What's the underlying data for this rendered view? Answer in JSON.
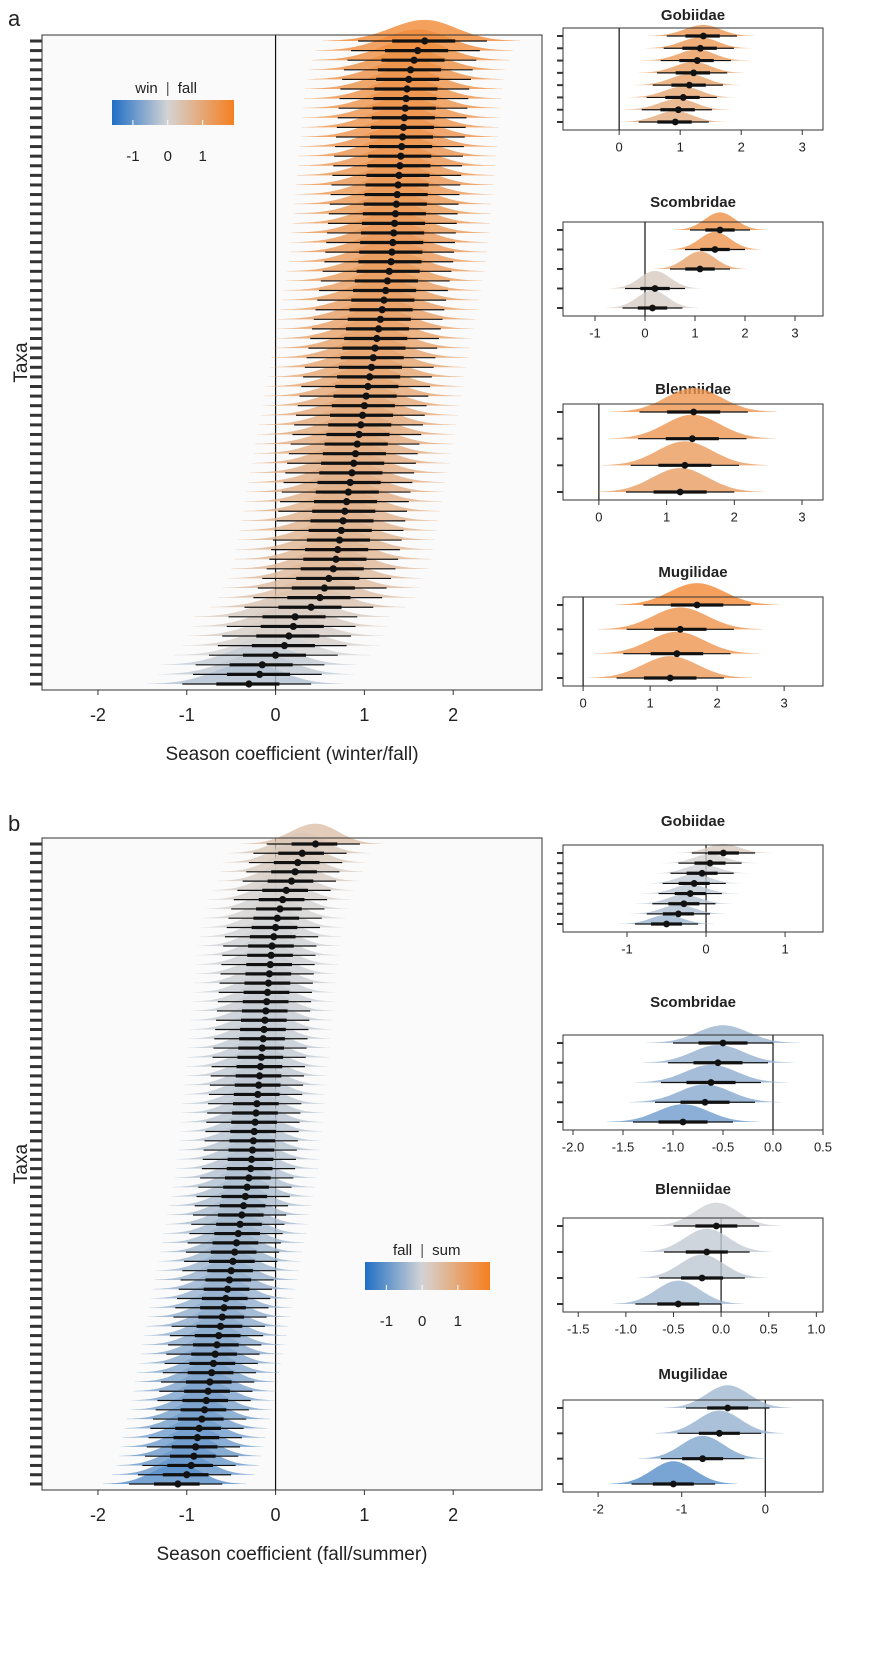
{
  "chart_data": [
    {
      "type": "eye",
      "panel_label": "a",
      "x_label": "Season coefficient (winter/fall)",
      "y_label": "Taxa",
      "xlim": [
        -2.63,
        3.0
      ],
      "xticks": [
        -2,
        -1,
        0,
        1,
        2
      ],
      "color_scale": {
        "labels": [
          "win",
          "fall"
        ],
        "ticks": [
          -1,
          0,
          1
        ],
        "lim": [
          -1.6,
          1.9
        ],
        "colors": [
          "#1f6fc5",
          "#d4d4d4",
          "#f57f20"
        ]
      },
      "values": [
        1.68,
        1.6,
        1.56,
        1.52,
        1.5,
        1.48,
        1.47,
        1.46,
        1.45,
        1.44,
        1.43,
        1.42,
        1.41,
        1.4,
        1.39,
        1.38,
        1.37,
        1.36,
        1.35,
        1.34,
        1.33,
        1.32,
        1.31,
        1.3,
        1.28,
        1.26,
        1.24,
        1.22,
        1.2,
        1.18,
        1.16,
        1.14,
        1.12,
        1.1,
        1.08,
        1.06,
        1.04,
        1.02,
        1.0,
        0.98,
        0.96,
        0.94,
        0.92,
        0.9,
        0.88,
        0.86,
        0.84,
        0.82,
        0.8,
        0.78,
        0.76,
        0.74,
        0.72,
        0.7,
        0.68,
        0.65,
        0.6,
        0.55,
        0.5,
        0.4,
        0.22,
        0.2,
        0.15,
        0.1,
        0.0,
        -0.15,
        -0.18,
        -0.3
      ],
      "lower": [
        0.93,
        0.85,
        0.81,
        0.77,
        0.75,
        0.73,
        0.72,
        0.71,
        0.7,
        0.69,
        0.68,
        0.67,
        0.66,
        0.65,
        0.64,
        0.63,
        0.62,
        0.61,
        0.6,
        0.59,
        0.58,
        0.57,
        0.56,
        0.55,
        0.53,
        0.51,
        0.49,
        0.47,
        0.45,
        0.43,
        0.41,
        0.39,
        0.37,
        0.35,
        0.33,
        0.31,
        0.29,
        0.27,
        0.25,
        0.23,
        0.21,
        0.19,
        0.17,
        0.15,
        0.13,
        0.11,
        0.09,
        0.07,
        0.05,
        0.03,
        0.01,
        -0.01,
        -0.03,
        -0.05,
        -0.07,
        -0.1,
        -0.15,
        -0.2,
        -0.25,
        -0.35,
        -0.53,
        -0.55,
        -0.6,
        -0.65,
        -0.75,
        -0.9,
        -0.93,
        -1.05
      ],
      "upper": [
        2.38,
        2.3,
        2.26,
        2.22,
        2.2,
        2.18,
        2.17,
        2.16,
        2.15,
        2.14,
        2.13,
        2.12,
        2.11,
        2.1,
        2.09,
        2.08,
        2.07,
        2.06,
        2.05,
        2.04,
        2.03,
        2.02,
        2.01,
        2.0,
        1.98,
        1.96,
        1.94,
        1.92,
        1.9,
        1.88,
        1.86,
        1.84,
        1.82,
        1.8,
        1.78,
        1.76,
        1.74,
        1.72,
        1.7,
        1.68,
        1.66,
        1.64,
        1.62,
        1.6,
        1.58,
        1.56,
        1.54,
        1.52,
        1.5,
        1.48,
        1.46,
        1.44,
        1.42,
        1.4,
        1.38,
        1.35,
        1.3,
        1.25,
        1.2,
        1.1,
        0.92,
        0.9,
        0.85,
        0.8,
        0.7,
        0.55,
        0.52,
        0.4
      ]
    },
    {
      "type": "eye",
      "title": "Gobiidae",
      "xlim": [
        -0.92,
        3.34
      ],
      "xticks": [
        0,
        1,
        2,
        3
      ],
      "values": [
        1.38,
        1.33,
        1.28,
        1.22,
        1.15,
        1.05,
        0.97,
        0.92
      ],
      "lower": [
        0.78,
        0.73,
        0.68,
        0.62,
        0.55,
        0.45,
        0.37,
        0.32
      ],
      "upper": [
        1.93,
        1.88,
        1.83,
        1.77,
        1.7,
        1.6,
        1.52,
        1.47
      ]
    },
    {
      "type": "eye",
      "title": "Scombridae",
      "xlim": [
        -1.64,
        3.56
      ],
      "xticks": [
        -1,
        0,
        1,
        2,
        3
      ],
      "values": [
        1.5,
        1.4,
        1.1,
        0.2,
        0.15
      ],
      "lower": [
        0.9,
        0.8,
        0.5,
        -0.4,
        -0.45
      ],
      "upper": [
        2.1,
        2.0,
        1.7,
        0.8,
        0.75
      ]
    },
    {
      "type": "eye",
      "title": "Blenniidae",
      "xlim": [
        -0.53,
        3.31
      ],
      "xticks": [
        0,
        1,
        2,
        3
      ],
      "values": [
        1.4,
        1.38,
        1.27,
        1.2
      ],
      "lower": [
        0.6,
        0.58,
        0.47,
        0.4
      ],
      "upper": [
        2.2,
        2.18,
        2.07,
        2.0
      ]
    },
    {
      "type": "eye",
      "title": "Mugilidae",
      "xlim": [
        -0.3,
        3.58
      ],
      "xticks": [
        0,
        1,
        2,
        3
      ],
      "values": [
        1.7,
        1.45,
        1.4,
        1.3
      ],
      "lower": [
        0.9,
        0.65,
        0.6,
        0.5
      ],
      "upper": [
        2.5,
        2.25,
        2.2,
        2.1
      ]
    },
    {
      "type": "eye",
      "panel_label": "b",
      "x_label": "Season coefficient (fall/summer)",
      "y_label": "Taxa",
      "xlim": [
        -2.63,
        3.0
      ],
      "xticks": [
        -2,
        -1,
        0,
        1,
        2
      ],
      "color_scale": {
        "labels": [
          "fall",
          "sum"
        ],
        "ticks": [
          -1,
          0,
          1
        ],
        "lim": [
          -1.6,
          1.9
        ],
        "colors": [
          "#1f6fc5",
          "#d4d4d4",
          "#f57f20"
        ]
      },
      "values": [
        0.45,
        0.3,
        0.25,
        0.22,
        0.18,
        0.12,
        0.08,
        0.05,
        0.02,
        0.0,
        -0.02,
        -0.04,
        -0.05,
        -0.06,
        -0.07,
        -0.08,
        -0.09,
        -0.1,
        -0.11,
        -0.12,
        -0.13,
        -0.14,
        -0.15,
        -0.16,
        -0.17,
        -0.18,
        -0.19,
        -0.2,
        -0.21,
        -0.22,
        -0.23,
        -0.24,
        -0.25,
        -0.26,
        -0.27,
        -0.28,
        -0.3,
        -0.32,
        -0.34,
        -0.36,
        -0.38,
        -0.4,
        -0.42,
        -0.44,
        -0.46,
        -0.48,
        -0.5,
        -0.52,
        -0.54,
        -0.56,
        -0.58,
        -0.6,
        -0.62,
        -0.64,
        -0.66,
        -0.68,
        -0.7,
        -0.72,
        -0.74,
        -0.76,
        -0.78,
        -0.8,
        -0.83,
        -0.86,
        -0.88,
        -0.9,
        -0.92,
        -0.95,
        -1.0,
        -1.1
      ],
      "lower": [
        -0.1,
        -0.25,
        -0.3,
        -0.33,
        -0.37,
        -0.43,
        -0.47,
        -0.5,
        -0.53,
        -0.55,
        -0.57,
        -0.59,
        -0.6,
        -0.61,
        -0.62,
        -0.63,
        -0.64,
        -0.65,
        -0.66,
        -0.67,
        -0.68,
        -0.69,
        -0.7,
        -0.71,
        -0.72,
        -0.73,
        -0.74,
        -0.75,
        -0.76,
        -0.77,
        -0.78,
        -0.79,
        -0.8,
        -0.81,
        -0.82,
        -0.83,
        -0.85,
        -0.87,
        -0.89,
        -0.91,
        -0.93,
        -0.95,
        -0.97,
        -0.99,
        -1.01,
        -1.03,
        -1.05,
        -1.07,
        -1.09,
        -1.11,
        -1.13,
        -1.15,
        -1.17,
        -1.19,
        -1.21,
        -1.23,
        -1.25,
        -1.27,
        -1.29,
        -1.31,
        -1.33,
        -1.35,
        -1.38,
        -1.41,
        -1.43,
        -1.45,
        -1.47,
        -1.5,
        -1.55,
        -1.65
      ],
      "upper": [
        0.95,
        0.8,
        0.75,
        0.72,
        0.68,
        0.62,
        0.58,
        0.55,
        0.52,
        0.5,
        0.48,
        0.46,
        0.45,
        0.44,
        0.43,
        0.42,
        0.41,
        0.4,
        0.39,
        0.38,
        0.37,
        0.36,
        0.35,
        0.34,
        0.33,
        0.32,
        0.31,
        0.3,
        0.29,
        0.28,
        0.27,
        0.26,
        0.25,
        0.24,
        0.23,
        0.22,
        0.2,
        0.18,
        0.16,
        0.14,
        0.12,
        0.1,
        0.08,
        0.06,
        0.04,
        0.02,
        0.0,
        -0.02,
        -0.04,
        -0.06,
        -0.08,
        -0.1,
        -0.12,
        -0.14,
        -0.16,
        -0.18,
        -0.2,
        -0.22,
        -0.24,
        -0.26,
        -0.28,
        -0.3,
        -0.33,
        -0.36,
        -0.38,
        -0.4,
        -0.42,
        -0.45,
        -0.5,
        -0.6
      ]
    },
    {
      "type": "eye",
      "title": "Gobiidae",
      "xlim": [
        -1.81,
        1.48
      ],
      "xticks": [
        -1,
        0,
        1
      ],
      "values": [
        0.22,
        0.05,
        -0.05,
        -0.15,
        -0.2,
        -0.28,
        -0.35,
        -0.5
      ],
      "lower": [
        -0.18,
        -0.35,
        -0.45,
        -0.55,
        -0.6,
        -0.68,
        -0.75,
        -0.9
      ],
      "upper": [
        0.62,
        0.45,
        0.35,
        0.25,
        0.2,
        0.12,
        0.05,
        -0.1
      ]
    },
    {
      "type": "eye",
      "title": "Scombridae",
      "xlim": [
        -2.1,
        0.5
      ],
      "xticks": [
        {
          "value": -2,
          "label": "-2.0"
        },
        {
          "value": -1.5,
          "label": "-1.5"
        },
        {
          "value": -1,
          "label": "-1.0"
        },
        {
          "value": -0.5,
          "label": "-0.5"
        },
        {
          "value": 0,
          "label": "0.0"
        },
        {
          "value": 0.5,
          "label": "0.5"
        }
      ],
      "values": [
        -0.5,
        -0.55,
        -0.62,
        -0.68,
        -0.9
      ],
      "lower": [
        -1.0,
        -1.05,
        -1.12,
        -1.18,
        -1.4
      ],
      "upper": [
        0.0,
        -0.05,
        -0.12,
        -0.18,
        -0.4
      ]
    },
    {
      "type": "eye",
      "title": "Blenniidae",
      "xlim": [
        -1.66,
        1.07
      ],
      "xticks": [
        {
          "value": -1.5,
          "label": "-1.5"
        },
        {
          "value": -1,
          "label": "-1.0"
        },
        {
          "value": -0.5,
          "label": "-0.5"
        },
        {
          "value": 0,
          "label": "0.0"
        },
        {
          "value": 0.5,
          "label": "0.5"
        },
        {
          "value": 1,
          "label": "1.0"
        }
      ],
      "values": [
        -0.05,
        -0.15,
        -0.2,
        -0.45
      ],
      "lower": [
        -0.5,
        -0.6,
        -0.65,
        -0.9
      ],
      "upper": [
        0.4,
        0.3,
        0.25,
        0.0
      ]
    },
    {
      "type": "eye",
      "title": "Mugilidae",
      "xlim": [
        -2.42,
        0.69
      ],
      "xticks": [
        -2,
        -1,
        0
      ],
      "values": [
        -0.45,
        -0.55,
        -0.75,
        -1.1
      ],
      "lower": [
        -0.95,
        -1.05,
        -1.25,
        -1.6
      ],
      "upper": [
        0.05,
        -0.05,
        -0.25,
        -0.6
      ]
    }
  ]
}
